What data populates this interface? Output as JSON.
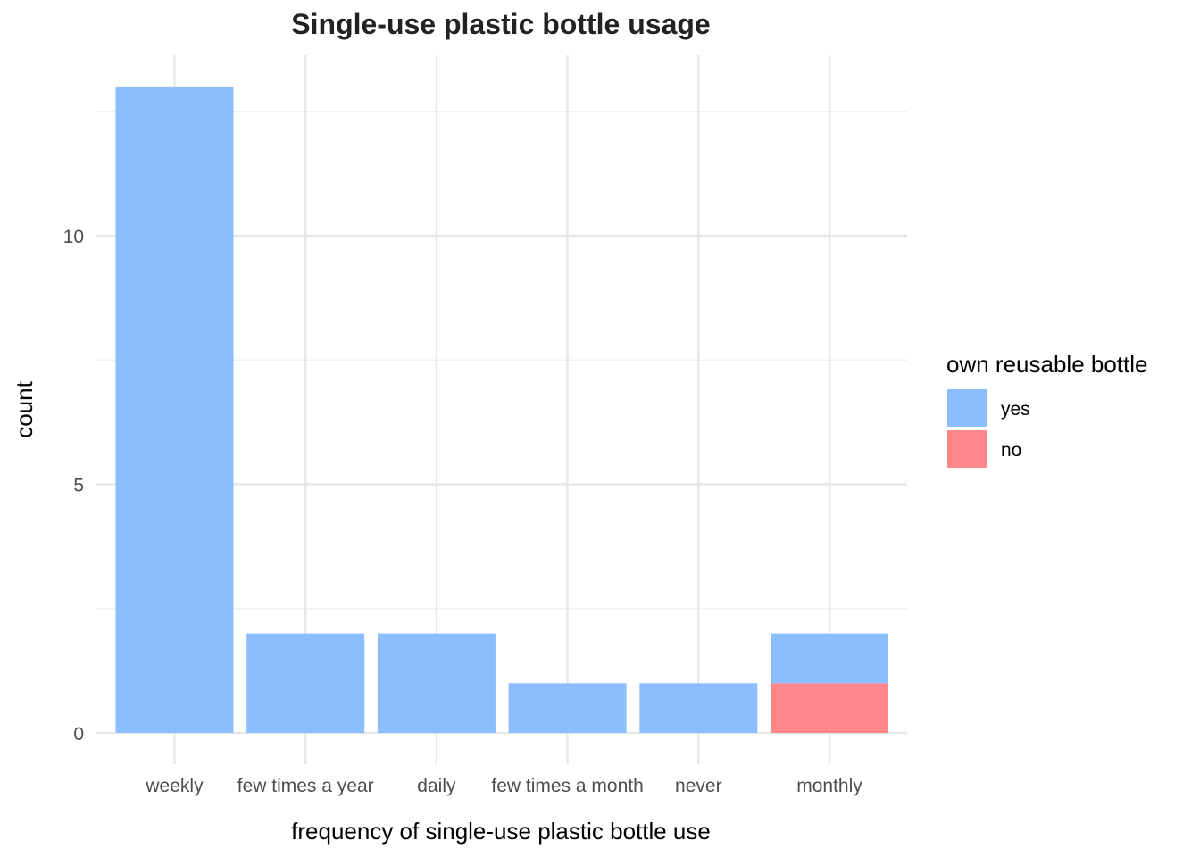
{
  "chart_data": {
    "type": "bar",
    "stacked": true,
    "title": "Single-use plastic bottle usage",
    "xlabel": "frequency of single-use plastic bottle use",
    "ylabel": "count",
    "categories": [
      "weekly",
      "few times a year",
      "daily",
      "few times a month",
      "never",
      "monthly"
    ],
    "series": [
      {
        "name": "no",
        "color": "#ff868a",
        "values": [
          0,
          0,
          0,
          0,
          0,
          1
        ]
      },
      {
        "name": "yes",
        "color": "#8abefe",
        "values": [
          13,
          2,
          2,
          1,
          1,
          1
        ]
      }
    ],
    "yticks": [
      0,
      5,
      10
    ],
    "yticks_minor": [
      2.5,
      7.5,
      12.5
    ],
    "ylim": [
      0,
      13.65
    ],
    "grid": true,
    "legend": {
      "title": "own reusable bottle",
      "position": "right",
      "entries": [
        {
          "label": "yes",
          "color": "#8abefe"
        },
        {
          "label": "no",
          "color": "#ff868a"
        }
      ]
    }
  }
}
